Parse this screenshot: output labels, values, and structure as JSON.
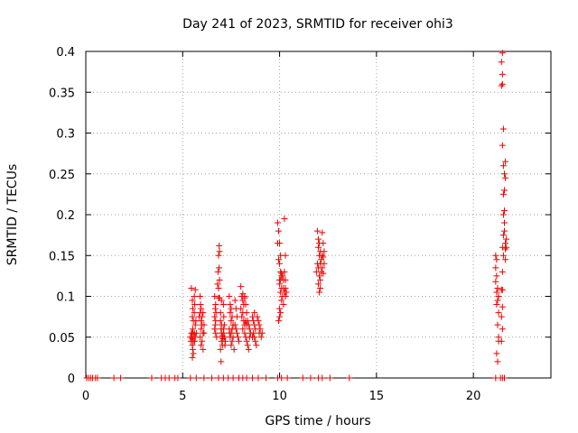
{
  "chart_data": {
    "type": "scatter",
    "title": "Day 241 of 2023, SRMTID for receiver ohi3",
    "xlabel": "GPS time / hours",
    "ylabel": "SRMTID / TECUs",
    "xlim": [
      0,
      24
    ],
    "ylim": [
      0,
      0.4
    ],
    "x_ticks": [
      0,
      5,
      10,
      15,
      20
    ],
    "y_ticks": [
      0,
      0.05,
      0.1,
      0.15,
      0.2,
      0.25,
      0.3,
      0.35,
      0.4
    ],
    "x_tick_labels": [
      "0",
      "5",
      "10",
      "15",
      "20"
    ],
    "y_tick_labels": [
      "0",
      "0.05",
      "0.1",
      "0.15",
      "0.2",
      "0.25",
      "0.3",
      "0.35",
      "0.4"
    ],
    "grid": true,
    "marker": "plus",
    "marker_color": "#ee0000",
    "series": [
      {
        "name": "SRMTID",
        "points": [
          [
            0.05,
            0
          ],
          [
            0.15,
            0
          ],
          [
            0.25,
            0
          ],
          [
            0.35,
            0
          ],
          [
            0.5,
            0
          ],
          [
            0.6,
            0
          ],
          [
            1.45,
            0
          ],
          [
            1.8,
            0
          ],
          [
            3.4,
            0
          ],
          [
            3.9,
            0
          ],
          [
            4.1,
            0
          ],
          [
            4.3,
            0
          ],
          [
            4.6,
            0
          ],
          [
            4.75,
            0
          ],
          [
            5.4,
            0
          ],
          [
            5.7,
            0
          ],
          [
            6.1,
            0
          ],
          [
            6.5,
            0
          ],
          [
            6.85,
            0
          ],
          [
            7.1,
            0
          ],
          [
            7.35,
            0
          ],
          [
            7.6,
            0
          ],
          [
            7.9,
            0
          ],
          [
            8.1,
            0
          ],
          [
            8.3,
            0
          ],
          [
            8.6,
            0
          ],
          [
            8.9,
            0
          ],
          [
            9.3,
            0
          ],
          [
            9.9,
            0
          ],
          [
            10.1,
            0
          ],
          [
            10.4,
            0
          ],
          [
            11.2,
            0
          ],
          [
            11.6,
            0
          ],
          [
            12.0,
            0
          ],
          [
            12.2,
            0
          ],
          [
            12.6,
            0
          ],
          [
            13.6,
            0
          ],
          [
            21.15,
            0
          ],
          [
            21.4,
            0
          ],
          [
            21.5,
            0
          ],
          [
            21.6,
            0
          ],
          [
            5.45,
            0.11
          ],
          [
            5.5,
            0.095
          ],
          [
            5.52,
            0.085
          ],
          [
            5.5,
            0.075
          ],
          [
            5.55,
            0.07
          ],
          [
            5.52,
            0.06
          ],
          [
            5.5,
            0.055
          ],
          [
            5.48,
            0.05
          ],
          [
            5.5,
            0.048
          ],
          [
            5.55,
            0.045
          ],
          [
            5.5,
            0.04
          ],
          [
            5.52,
            0.035
          ],
          [
            5.55,
            0.03
          ],
          [
            5.5,
            0.025
          ],
          [
            5.6,
            0.1
          ],
          [
            5.62,
            0.09
          ],
          [
            5.6,
            0.08
          ],
          [
            5.65,
            0.065
          ],
          [
            5.6,
            0.055
          ],
          [
            5.65,
            0.05
          ],
          [
            5.62,
            0.045
          ],
          [
            5.58,
            0.053
          ],
          [
            5.4,
            0.05
          ],
          [
            5.42,
            0.045
          ],
          [
            5.45,
            0.055
          ],
          [
            5.65,
            0.108
          ],
          [
            5.68,
            0.07
          ],
          [
            5.7,
            0.055
          ],
          [
            5.9,
            0.1
          ],
          [
            5.92,
            0.09
          ],
          [
            5.95,
            0.085
          ],
          [
            5.9,
            0.08
          ],
          [
            6.0,
            0.075
          ],
          [
            5.95,
            0.07
          ],
          [
            6.0,
            0.065
          ],
          [
            5.95,
            0.06
          ],
          [
            6.05,
            0.055
          ],
          [
            5.9,
            0.05
          ],
          [
            6.0,
            0.045
          ],
          [
            5.95,
            0.04
          ],
          [
            6.05,
            0.035
          ],
          [
            5.85,
            0.075
          ],
          [
            6.05,
            0.08
          ],
          [
            6.1,
            0.065
          ],
          [
            6.1,
            0.055
          ],
          [
            6.65,
            0.1
          ],
          [
            6.7,
            0.09
          ],
          [
            6.68,
            0.085
          ],
          [
            6.72,
            0.08
          ],
          [
            6.65,
            0.075
          ],
          [
            6.7,
            0.07
          ],
          [
            6.68,
            0.065
          ],
          [
            6.65,
            0.06
          ],
          [
            6.7,
            0.055
          ],
          [
            6.75,
            0.05
          ],
          [
            6.8,
            0.115
          ],
          [
            6.85,
            0.11
          ],
          [
            6.82,
            0.13
          ],
          [
            6.88,
            0.135
          ],
          [
            6.85,
            0.15
          ],
          [
            6.9,
            0.155
          ],
          [
            6.88,
            0.162
          ],
          [
            6.9,
            0.12
          ],
          [
            6.95,
            0.08
          ],
          [
            6.95,
            0.07
          ],
          [
            7.0,
            0.065
          ],
          [
            6.98,
            0.06
          ],
          [
            7.0,
            0.055
          ],
          [
            7.05,
            0.05
          ],
          [
            7.0,
            0.045
          ],
          [
            7.05,
            0.04
          ],
          [
            6.95,
            0.035
          ],
          [
            6.98,
            0.02
          ],
          [
            7.1,
            0.09
          ],
          [
            7.12,
            0.075
          ],
          [
            7.15,
            0.065
          ],
          [
            7.1,
            0.06
          ],
          [
            7.12,
            0.055
          ],
          [
            7.15,
            0.05
          ],
          [
            7.2,
            0.045
          ],
          [
            7.18,
            0.04
          ],
          [
            7.0,
            0.095
          ],
          [
            6.85,
            0.098
          ],
          [
            6.9,
            0.098
          ],
          [
            7.05,
            0.052
          ],
          [
            7.08,
            0.048
          ],
          [
            7.4,
            0.1
          ],
          [
            7.45,
            0.09
          ],
          [
            7.5,
            0.085
          ],
          [
            7.45,
            0.08
          ],
          [
            7.55,
            0.075
          ],
          [
            7.5,
            0.07
          ],
          [
            7.6,
            0.065
          ],
          [
            7.55,
            0.06
          ],
          [
            7.5,
            0.055
          ],
          [
            7.6,
            0.05
          ],
          [
            7.55,
            0.045
          ],
          [
            7.5,
            0.04
          ],
          [
            7.65,
            0.035
          ],
          [
            7.7,
            0.095
          ],
          [
            7.75,
            0.085
          ],
          [
            7.8,
            0.075
          ],
          [
            7.7,
            0.065
          ],
          [
            7.75,
            0.06
          ],
          [
            7.8,
            0.055
          ],
          [
            7.85,
            0.05
          ],
          [
            7.9,
            0.045
          ],
          [
            7.4,
            0.06
          ],
          [
            7.42,
            0.055
          ],
          [
            7.45,
            0.05
          ],
          [
            8.0,
            0.112
          ],
          [
            8.05,
            0.1
          ],
          [
            8.1,
            0.095
          ],
          [
            8.15,
            0.09
          ],
          [
            8.0,
            0.085
          ],
          [
            8.1,
            0.08
          ],
          [
            8.05,
            0.075
          ],
          [
            8.15,
            0.07
          ],
          [
            8.2,
            0.065
          ],
          [
            8.1,
            0.06
          ],
          [
            8.2,
            0.055
          ],
          [
            8.25,
            0.05
          ],
          [
            8.3,
            0.045
          ],
          [
            8.35,
            0.04
          ],
          [
            8.4,
            0.035
          ],
          [
            8.2,
            0.1
          ],
          [
            8.25,
            0.09
          ],
          [
            8.3,
            0.08
          ],
          [
            8.35,
            0.07
          ],
          [
            8.4,
            0.065
          ],
          [
            8.45,
            0.06
          ],
          [
            8.5,
            0.055
          ],
          [
            8.45,
            0.05
          ],
          [
            8.1,
            0.103
          ],
          [
            8.2,
            0.098
          ],
          [
            8.25,
            0.07
          ],
          [
            8.3,
            0.065
          ],
          [
            8.6,
            0.075
          ],
          [
            8.65,
            0.07
          ],
          [
            8.7,
            0.065
          ],
          [
            8.75,
            0.06
          ],
          [
            8.65,
            0.055
          ],
          [
            8.7,
            0.05
          ],
          [
            8.75,
            0.045
          ],
          [
            8.8,
            0.04
          ],
          [
            8.85,
            0.075
          ],
          [
            8.9,
            0.07
          ],
          [
            8.95,
            0.065
          ],
          [
            9.0,
            0.06
          ],
          [
            8.95,
            0.055
          ],
          [
            9.05,
            0.05
          ],
          [
            9.1,
            0.055
          ],
          [
            8.6,
            0.05
          ],
          [
            8.7,
            0.08
          ],
          [
            9.9,
            0.19
          ],
          [
            9.95,
            0.18
          ],
          [
            9.9,
            0.165
          ],
          [
            10.0,
            0.165
          ],
          [
            10.05,
            0.15
          ],
          [
            9.95,
            0.145
          ],
          [
            10.0,
            0.14
          ],
          [
            10.05,
            0.13
          ],
          [
            10.1,
            0.125
          ],
          [
            10.0,
            0.12
          ],
          [
            10.1,
            0.11
          ],
          [
            10.05,
            0.105
          ],
          [
            10.15,
            0.1
          ],
          [
            10.1,
            0.095
          ],
          [
            10.2,
            0.09
          ],
          [
            10.0,
            0.085
          ],
          [
            10.05,
            0.08
          ],
          [
            10.0,
            0.075
          ],
          [
            9.95,
            0.07
          ],
          [
            10.25,
            0.195
          ],
          [
            10.3,
            0.15
          ],
          [
            10.25,
            0.13
          ],
          [
            10.3,
            0.12
          ],
          [
            10.2,
            0.11
          ],
          [
            10.25,
            0.105
          ],
          [
            10.3,
            0.1
          ],
          [
            10.1,
            0.128
          ],
          [
            10.15,
            0.125
          ],
          [
            10.2,
            0.12
          ],
          [
            10.3,
            0.11
          ],
          [
            10.35,
            0.105
          ],
          [
            10.0,
            0.115
          ],
          [
            10.05,
            0.12
          ],
          [
            11.95,
            0.18
          ],
          [
            12.0,
            0.17
          ],
          [
            12.05,
            0.165
          ],
          [
            12.0,
            0.16
          ],
          [
            12.1,
            0.155
          ],
          [
            12.05,
            0.15
          ],
          [
            12.15,
            0.145
          ],
          [
            12.1,
            0.14
          ],
          [
            12.0,
            0.135
          ],
          [
            12.15,
            0.13
          ],
          [
            12.05,
            0.125
          ],
          [
            12.1,
            0.12
          ],
          [
            12.0,
            0.115
          ],
          [
            12.1,
            0.11
          ],
          [
            12.05,
            0.105
          ],
          [
            12.2,
            0.178
          ],
          [
            12.25,
            0.165
          ],
          [
            12.3,
            0.155
          ],
          [
            12.25,
            0.148
          ],
          [
            12.3,
            0.14
          ],
          [
            12.2,
            0.135
          ],
          [
            12.25,
            0.128
          ],
          [
            11.9,
            0.13
          ],
          [
            11.95,
            0.14
          ],
          [
            12.2,
            0.15
          ],
          [
            21.15,
            0.15
          ],
          [
            21.2,
            0.145
          ],
          [
            21.15,
            0.135
          ],
          [
            21.2,
            0.125
          ],
          [
            21.15,
            0.118
          ],
          [
            21.2,
            0.105
          ],
          [
            21.25,
            0.095
          ],
          [
            21.2,
            0.09
          ],
          [
            21.3,
            0.08
          ],
          [
            21.25,
            0.065
          ],
          [
            21.3,
            0.05
          ],
          [
            21.3,
            0.045
          ],
          [
            21.2,
            0.03
          ],
          [
            21.25,
            0.02
          ],
          [
            21.3,
            0.1
          ],
          [
            21.25,
            0.11
          ],
          [
            21.45,
            0.045
          ],
          [
            21.5,
            0.06
          ],
          [
            21.45,
            0.075
          ],
          [
            21.5,
            0.087
          ],
          [
            21.45,
            0.108
          ],
          [
            21.5,
            0.108
          ],
          [
            21.5,
            0.13
          ],
          [
            21.55,
            0.15
          ],
          [
            21.5,
            0.16
          ],
          [
            21.55,
            0.175
          ],
          [
            21.6,
            0.19
          ],
          [
            21.55,
            0.2
          ],
          [
            21.6,
            0.205
          ],
          [
            21.55,
            0.225
          ],
          [
            21.6,
            0.23
          ],
          [
            21.65,
            0.245
          ],
          [
            21.6,
            0.25
          ],
          [
            21.55,
            0.26
          ],
          [
            21.65,
            0.265
          ],
          [
            21.5,
            0.285
          ],
          [
            21.55,
            0.305
          ],
          [
            21.45,
            0.358
          ],
          [
            21.5,
            0.36
          ],
          [
            21.5,
            0.372
          ],
          [
            21.45,
            0.387
          ],
          [
            21.5,
            0.398
          ],
          [
            21.65,
            0.145
          ],
          [
            21.7,
            0.16
          ],
          [
            21.65,
            0.165
          ],
          [
            21.7,
            0.17
          ],
          [
            21.6,
            0.18
          ],
          [
            21.65,
            0.158
          ]
        ]
      }
    ]
  }
}
